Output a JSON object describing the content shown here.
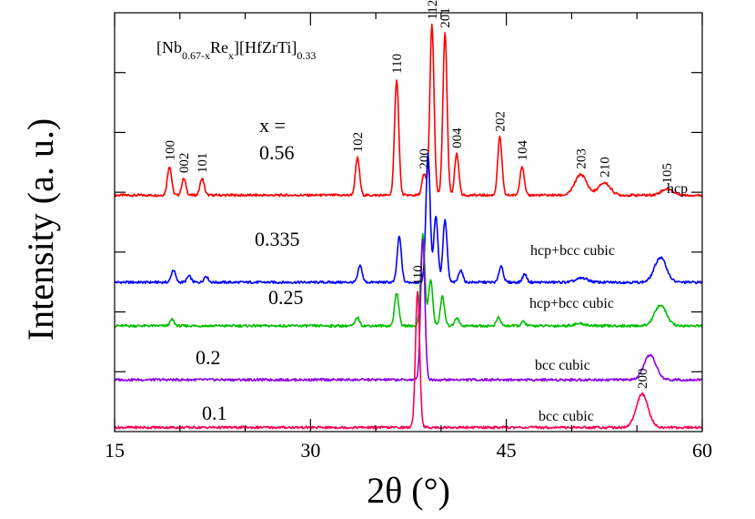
{
  "chart_data": {
    "type": "line",
    "title_parts": [
      {
        "text": "[Nb",
        "sub": false
      },
      {
        "text": "0.67-x",
        "sub": true
      },
      {
        "text": "Re",
        "sub": false
      },
      {
        "text": "x",
        "sub": true
      },
      {
        "text": "][HfZrTi]",
        "sub": false
      },
      {
        "text": "0.33",
        "sub": true
      }
    ],
    "xlabel": "2θ (°)",
    "ylabel": "Intensity (a. u.)",
    "xlim": [
      15,
      60
    ],
    "xticks": [
      15,
      30,
      45,
      60
    ],
    "yticks_unlabeled": 6,
    "series_prefix": "x =",
    "series": [
      {
        "name": "0.56",
        "phase": "hcp",
        "color": "#ff0000",
        "baseline": 0.56,
        "peaks": [
          {
            "x": 19.2,
            "h": 0.07,
            "label": "100"
          },
          {
            "x": 20.3,
            "h": 0.04,
            "label": "002"
          },
          {
            "x": 21.7,
            "h": 0.04,
            "label": "101"
          },
          {
            "x": 33.6,
            "h": 0.09,
            "label": "102"
          },
          {
            "x": 36.6,
            "h": 0.28,
            "label": "110"
          },
          {
            "x": 38.7,
            "h": 0.05,
            "label": "200"
          },
          {
            "x": 39.3,
            "h": 0.41,
            "label": "112"
          },
          {
            "x": 40.3,
            "h": 0.39,
            "label": "201"
          },
          {
            "x": 41.2,
            "h": 0.1,
            "label": "004"
          },
          {
            "x": 44.5,
            "h": 0.14,
            "label": "202"
          },
          {
            "x": 46.2,
            "h": 0.07,
            "label": "104"
          },
          {
            "x": 50.7,
            "h": 0.05,
            "label": "203"
          },
          {
            "x": 52.5,
            "h": 0.03,
            "label": "210"
          },
          {
            "x": 57.3,
            "h": 0.015,
            "label": "105"
          }
        ]
      },
      {
        "name": "0.335",
        "phase": "hcp+bcc cubic",
        "color": "#0000ff",
        "baseline": 0.35,
        "peaks": [
          {
            "x": 19.5,
            "h": 0.03
          },
          {
            "x": 20.7,
            "h": 0.015
          },
          {
            "x": 22.0,
            "h": 0.015
          },
          {
            "x": 33.8,
            "h": 0.04
          },
          {
            "x": 36.8,
            "h": 0.11
          },
          {
            "x": 39.0,
            "h": 0.31
          },
          {
            "x": 39.6,
            "h": 0.16
          },
          {
            "x": 40.3,
            "h": 0.15
          },
          {
            "x": 41.5,
            "h": 0.03
          },
          {
            "x": 44.6,
            "h": 0.04
          },
          {
            "x": 46.4,
            "h": 0.02
          },
          {
            "x": 50.8,
            "h": 0.01
          },
          {
            "x": 56.8,
            "h": 0.06
          }
        ]
      },
      {
        "name": "0.25",
        "phase": "hcp+bcc cubic",
        "color": "#00c000",
        "baseline": 0.245,
        "peaks": [
          {
            "x": 19.4,
            "h": 0.015
          },
          {
            "x": 33.6,
            "h": 0.02
          },
          {
            "x": 36.6,
            "h": 0.08
          },
          {
            "x": 38.6,
            "h": 0.22
          },
          {
            "x": 39.2,
            "h": 0.11
          },
          {
            "x": 40.1,
            "h": 0.07
          },
          {
            "x": 41.2,
            "h": 0.02
          },
          {
            "x": 44.4,
            "h": 0.02
          },
          {
            "x": 46.3,
            "h": 0.01
          },
          {
            "x": 50.6,
            "h": 0.005
          },
          {
            "x": 56.8,
            "h": 0.05
          }
        ]
      },
      {
        "name": "0.2",
        "phase": "bcc cubic",
        "color": "#8a00e6",
        "baseline": 0.115,
        "peaks": [
          {
            "x": 38.6,
            "h": 0.34
          },
          {
            "x": 56.0,
            "h": 0.06
          }
        ]
      },
      {
        "name": "0.1",
        "phase": "bcc cubic",
        "color": "#ff0050",
        "baseline": 0.0,
        "peaks": [
          {
            "x": 38.2,
            "h": 0.33,
            "label": "110"
          },
          {
            "x": 55.4,
            "h": 0.08,
            "label": "200"
          }
        ]
      }
    ],
    "legend": "none",
    "grid": false
  }
}
